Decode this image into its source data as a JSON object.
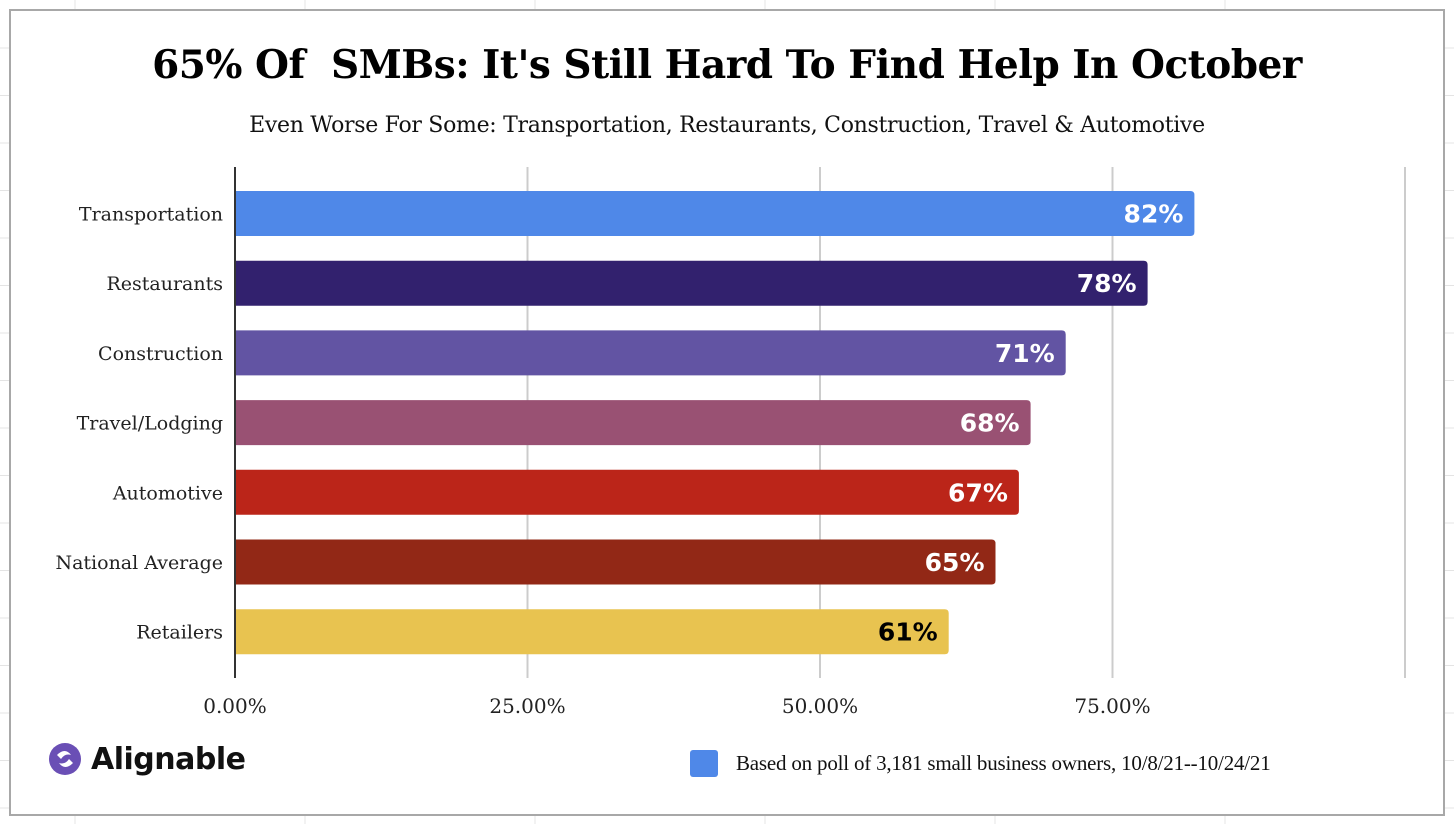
{
  "chart_data": {
    "type": "bar",
    "orientation": "horizontal",
    "title": "65% Of  SMBs: It's Still Hard To Find Help In October",
    "subtitle": "Even Worse For Some: Transportation, Restaurants, Construction, Travel & Automotive",
    "xlabel": "",
    "ylabel": "",
    "categories": [
      "Transportation",
      "Restaurants",
      "Construction",
      "Travel/Lodging",
      "Automotive",
      "National Average",
      "Retailers"
    ],
    "values": [
      82,
      78,
      71,
      68,
      67,
      65,
      61
    ],
    "data_labels": [
      "82%",
      "78%",
      "71%",
      "68%",
      "67%",
      "65%",
      "61%"
    ],
    "bar_colors": [
      "#4f88e8",
      "#32216e",
      "#6254a3",
      "#995173",
      "#bb2519",
      "#922816",
      "#e8c350"
    ],
    "label_colors": [
      "#ffffff",
      "#ffffff",
      "#ffffff",
      "#ffffff",
      "#ffffff",
      "#ffffff",
      "#000000"
    ],
    "xlim": [
      0,
      100
    ],
    "x_ticks": [
      0,
      25,
      50,
      75,
      100
    ],
    "x_tick_labels": [
      "0.00%",
      "25.00%",
      "50.00%",
      "75.00%",
      ""
    ],
    "grid": true,
    "legend": {
      "position": "bottom-right",
      "entries": [
        {
          "label": "Based on poll of 3,181 small business owners, 10/8/21--10/24/21",
          "color": "#4f88e8"
        }
      ]
    }
  },
  "branding": {
    "logo_text": "Alignable",
    "logo_color": "#6a4fb5"
  }
}
